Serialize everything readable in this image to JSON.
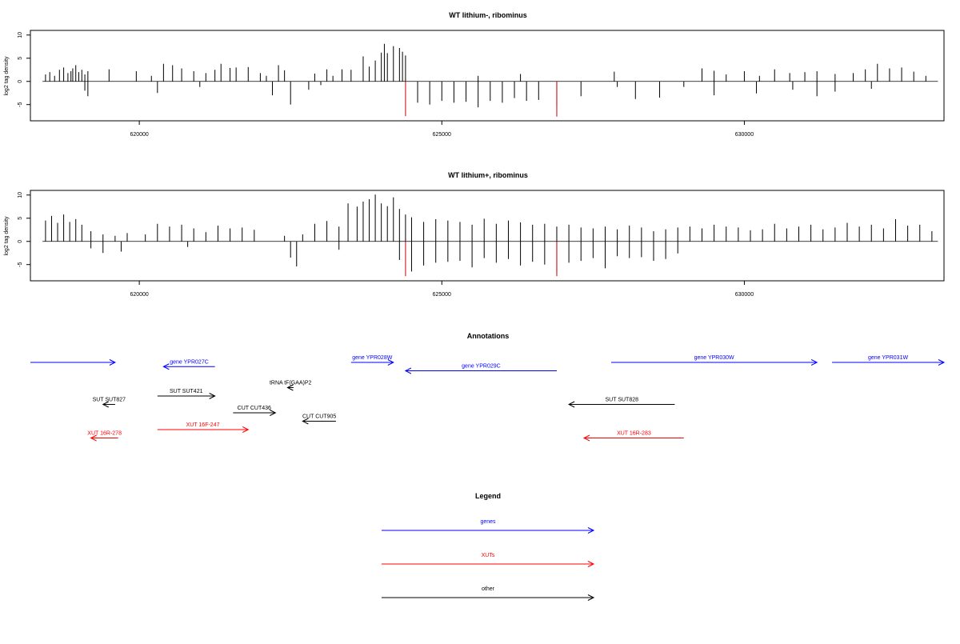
{
  "chart_data": [
    {
      "type": "bar",
      "title": "WT lithium-, ribominus",
      "xlabel": "",
      "ylabel": "log2 tag density",
      "xlim": [
        618200,
        633300
      ],
      "ylim": [
        -8.5,
        11
      ],
      "yticks": [
        -5,
        0,
        5,
        10
      ],
      "xticks": [
        620000,
        625000,
        630000
      ],
      "baseline_x": [
        618400,
        633200
      ],
      "series": [
        {
          "strand": "plus",
          "color": "#000000",
          "x": [
            618450,
            618520,
            618600,
            618680,
            618750,
            618820,
            618870,
            618900,
            618950,
            619000,
            619050,
            619100,
            619150,
            619500,
            619950,
            620200,
            620400,
            620550,
            620700,
            620900,
            621100,
            621250,
            621350,
            621500,
            621600,
            621800,
            622000,
            622100,
            622300,
            622400,
            622900,
            623100,
            623200,
            623350,
            623500,
            623700,
            623800,
            623900,
            624000,
            624050,
            624100,
            624200,
            624300,
            624350,
            624400,
            625600,
            626300,
            627850,
            629300,
            629500,
            629700,
            630000,
            630250,
            630500,
            630750,
            631000,
            631200,
            631500,
            631800,
            632000,
            632200,
            632400,
            632600,
            632800,
            633000
          ],
          "y": [
            1.5,
            2,
            1.2,
            2.5,
            3,
            1.8,
            2.2,
            2.8,
            3.5,
            2,
            2.5,
            1.5,
            2.2,
            2.6,
            2.2,
            1.2,
            3.8,
            3.5,
            2.8,
            2.2,
            1.8,
            2.5,
            3.8,
            2.9,
            3,
            3.1,
            1.8,
            1.2,
            3.5,
            2.4,
            1.7,
            2.6,
            1.2,
            2.6,
            2.5,
            5.4,
            3.2,
            4.5,
            6.2,
            8.1,
            6.1,
            7.6,
            7.2,
            6.4,
            5.6,
            1.2,
            1.6,
            2.1,
            2.8,
            2.3,
            1.5,
            2.2,
            1.2,
            2.6,
            1.8,
            2,
            2.2,
            1.6,
            1.8,
            2.6,
            3.8,
            2.8,
            3,
            2.1,
            1.2
          ]
        },
        {
          "strand": "minus",
          "color": "#000000",
          "x": [
            619100,
            619150,
            620300,
            621000,
            622200,
            622500,
            622800,
            623000,
            624600,
            624800,
            625000,
            625200,
            625400,
            625600,
            625800,
            626000,
            626200,
            626400,
            626600,
            626900,
            627300,
            627900,
            628200,
            628600,
            629000,
            629500,
            630200,
            630800,
            631200,
            631500,
            632100
          ],
          "y": [
            -2,
            -3.2,
            -2.5,
            -1.2,
            -3,
            -5,
            -1.8,
            -0.8,
            -4.6,
            -5,
            -4.2,
            -4.6,
            -4.4,
            -5.6,
            -4.2,
            -4.6,
            -3.6,
            -4.2,
            -4,
            -5.5,
            -3.2,
            -1.2,
            -3.8,
            -3.5,
            -1.2,
            -3,
            -2.6,
            -1.8,
            -3.2,
            -2.2,
            -1.6
          ]
        },
        {
          "strand": "minus",
          "color": "#cc0000",
          "x": [
            624400,
            626900
          ],
          "y": [
            -7.5,
            -7.6
          ]
        }
      ]
    },
    {
      "type": "bar",
      "title": "WT lithium+, ribominus",
      "xlabel": "",
      "ylabel": "log2 tag density",
      "xlim": [
        618200,
        633300
      ],
      "ylim": [
        -8.5,
        11
      ],
      "yticks": [
        -5,
        0,
        5,
        10
      ],
      "xticks": [
        620000,
        625000,
        630000
      ],
      "baseline_x": [
        618400,
        633200
      ],
      "series": [
        {
          "strand": "plus",
          "color": "#000000",
          "x": [
            618450,
            618550,
            618650,
            618750,
            618850,
            618950,
            619050,
            619200,
            619400,
            619600,
            619800,
            620100,
            620300,
            620500,
            620700,
            620900,
            621100,
            621300,
            621500,
            621700,
            621900,
            622400,
            622700,
            622900,
            623100,
            623300,
            623450,
            623600,
            623700,
            623800,
            623900,
            624000,
            624100,
            624200,
            624300,
            624400,
            624500,
            624700,
            624900,
            625100,
            625300,
            625500,
            625700,
            625900,
            626100,
            626300,
            626500,
            626700,
            626900,
            627100,
            627300,
            627500,
            627700,
            627900,
            628100,
            628300,
            628500,
            628700,
            628900,
            629100,
            629300,
            629500,
            629700,
            629900,
            630100,
            630300,
            630500,
            630700,
            630900,
            631100,
            631300,
            631500,
            631700,
            631900,
            632100,
            632300,
            632500,
            632700,
            632900,
            633100
          ],
          "y": [
            4.5,
            5.5,
            4,
            5.8,
            4.2,
            4.8,
            3.6,
            2.2,
            1.5,
            1.2,
            1.8,
            1.5,
            3.8,
            3.2,
            3.6,
            2.8,
            2,
            3.4,
            2.8,
            3,
            2.5,
            1.2,
            1.5,
            3.8,
            4.4,
            3.2,
            8.2,
            7.5,
            8.6,
            9.1,
            10.1,
            8.2,
            7.6,
            9.5,
            7,
            5.8,
            5.2,
            4.2,
            4.8,
            4.5,
            4.2,
            3.6,
            4.9,
            3.8,
            4.5,
            4.1,
            3.6,
            3.8,
            3.2,
            3.6,
            3,
            2.8,
            3.2,
            2.6,
            3.4,
            3,
            2.2,
            2.6,
            3,
            3.2,
            2.8,
            3.6,
            3.2,
            3,
            2.4,
            2.6,
            3.8,
            2.8,
            3.2,
            3.6,
            2.6,
            3,
            4,
            3.2,
            3.6,
            2.8,
            4.8,
            3.4,
            3.6,
            2.2
          ]
        },
        {
          "strand": "minus",
          "color": "#000000",
          "x": [
            619200,
            619400,
            619700,
            620800,
            622500,
            622600,
            623300,
            624300,
            624500,
            624700,
            624900,
            625100,
            625300,
            625500,
            625700,
            625900,
            626100,
            626300,
            626500,
            626700,
            626900,
            627100,
            627300,
            627500,
            627700,
            627900,
            628100,
            628300,
            628500,
            628700,
            628900
          ],
          "y": [
            -1.5,
            -2.5,
            -2.2,
            -1.2,
            -3.5,
            -5.4,
            -1.8,
            -4,
            -6.5,
            -5.2,
            -4.6,
            -4.4,
            -4.2,
            -5.6,
            -3.6,
            -4.6,
            -3.8,
            -5.2,
            -4.4,
            -5,
            -6.8,
            -4.6,
            -4.2,
            -3.6,
            -5.8,
            -3.2,
            -3.6,
            -3.4,
            -4.2,
            -3.8,
            -2.6
          ]
        },
        {
          "strand": "minus",
          "color": "#cc0000",
          "x": [
            624400,
            626900
          ],
          "y": [
            -7.5,
            -7.5
          ]
        }
      ]
    }
  ],
  "panels": {
    "panel1": {
      "title": "WT lithium-, ribominus",
      "ylabel": "log2 tag density",
      "ytick_labels": [
        "10",
        "5",
        "0",
        "-5"
      ],
      "xtick_labels": [
        "620000",
        "625000",
        "630000"
      ]
    },
    "panel2": {
      "title": "WT lithium+, ribominus",
      "ylabel": "log2 tag density",
      "ytick_labels": [
        "10",
        "5",
        "0",
        "-5"
      ],
      "xtick_labels": [
        "620000",
        "625000",
        "630000"
      ]
    }
  },
  "annotations": {
    "title": "Annotations",
    "colors": {
      "gene": "#0000ff",
      "xut": "#ff0000",
      "other": "#000000"
    },
    "features": [
      {
        "label": "",
        "type": "gene",
        "strand": "+",
        "start": 618200,
        "end": 619600,
        "row": 0
      },
      {
        "label": "gene YPR027C",
        "type": "gene",
        "strand": "-",
        "start": 620400,
        "end": 621250,
        "row": 0.5
      },
      {
        "label": "gene YPR028W",
        "type": "gene",
        "strand": "+",
        "start": 623500,
        "end": 624200,
        "row": 0
      },
      {
        "label": "gene YPR029C",
        "type": "gene",
        "strand": "-",
        "start": 624400,
        "end": 626900,
        "row": 1
      },
      {
        "label": "gene YPR030W",
        "type": "gene",
        "strand": "+",
        "start": 627800,
        "end": 631200,
        "row": 0
      },
      {
        "label": "gene YPR031W",
        "type": "gene",
        "strand": "+",
        "start": 631450,
        "end": 633700,
        "row": 0
      },
      {
        "label": "tRNA tF(GAA)P2",
        "type": "other",
        "strand": "-",
        "start": 622450,
        "end": 622550,
        "row": 3
      },
      {
        "label": "SUT SUT421",
        "type": "other",
        "strand": "+",
        "start": 620300,
        "end": 621250,
        "row": 4
      },
      {
        "label": "SUT SUT827",
        "type": "other",
        "strand": "-",
        "start": 619400,
        "end": 619600,
        "row": 5
      },
      {
        "label": "SUT SUT828",
        "type": "other",
        "strand": "-",
        "start": 627100,
        "end": 628850,
        "row": 5
      },
      {
        "label": "CUT CUT436",
        "type": "other",
        "strand": "+",
        "start": 621550,
        "end": 622250,
        "row": 6
      },
      {
        "label": "CUT CUT905",
        "type": "other",
        "strand": "-",
        "start": 622700,
        "end": 623250,
        "row": 7
      },
      {
        "label": "XUT 16F-247",
        "type": "xut",
        "strand": "+",
        "start": 620300,
        "end": 621800,
        "row": 8
      },
      {
        "label": "XUT 16R-278",
        "type": "xut",
        "strand": "-",
        "start": 619200,
        "end": 619650,
        "row": 9
      },
      {
        "label": "XUT 16R-283",
        "type": "xut",
        "strand": "-",
        "start": 627350,
        "end": 629000,
        "row": 9
      }
    ]
  },
  "legend": {
    "title": "Legend",
    "items": [
      {
        "label": "genes",
        "type": "gene"
      },
      {
        "label": "XUTs",
        "type": "xut"
      },
      {
        "label": "other",
        "type": "other"
      }
    ]
  }
}
